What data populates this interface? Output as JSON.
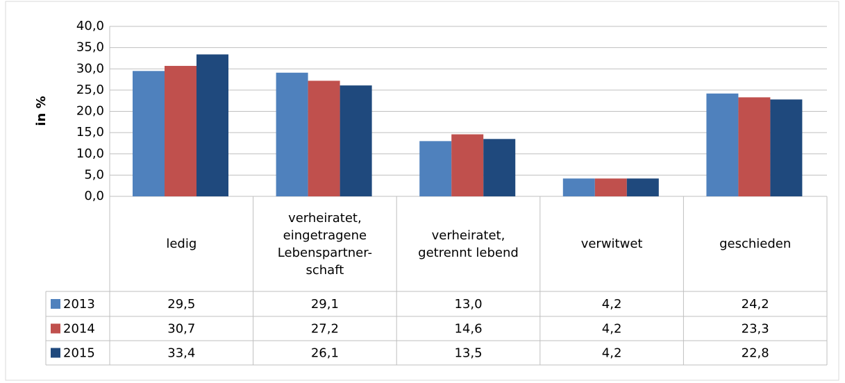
{
  "chart_data": {
    "type": "bar",
    "y_label": "in %",
    "categories": [
      "ledig",
      "verheiratet,\neingetragene\nLebenspartner-\nschaft",
      "verheiratet,\ngetrennt lebend",
      "verwitwet",
      "geschieden"
    ],
    "series": [
      {
        "name": "2013",
        "color": "#4f81bd",
        "values": [
          29.5,
          29.1,
          13.0,
          4.2,
          24.2
        ],
        "value_labels": [
          "29,5",
          "29,1",
          "13,0",
          "4,2",
          "24,2"
        ]
      },
      {
        "name": "2014",
        "color": "#c0504d",
        "values": [
          30.7,
          27.2,
          14.6,
          4.2,
          23.3
        ],
        "value_labels": [
          "30,7",
          "27,2",
          "14,6",
          "4,2",
          "23,3"
        ]
      },
      {
        "name": "2015",
        "color": "#1f497d",
        "values": [
          33.4,
          26.1,
          13.5,
          4.2,
          22.8
        ],
        "value_labels": [
          "33,4",
          "26,1",
          "13,5",
          "4,2",
          "22,8"
        ]
      }
    ],
    "ylim": [
      0,
      40
    ],
    "yticks": [
      {
        "value": 0,
        "label": "0,0"
      },
      {
        "value": 5,
        "label": "5,0"
      },
      {
        "value": 10,
        "label": "10,0"
      },
      {
        "value": 15,
        "label": "15,0"
      },
      {
        "value": 20,
        "label": "20,0"
      },
      {
        "value": 25,
        "label": "25,0"
      },
      {
        "value": 30,
        "label": "30,0"
      },
      {
        "value": 35,
        "label": "35,0"
      },
      {
        "value": 40,
        "label": "40,0"
      }
    ],
    "grid": true
  }
}
